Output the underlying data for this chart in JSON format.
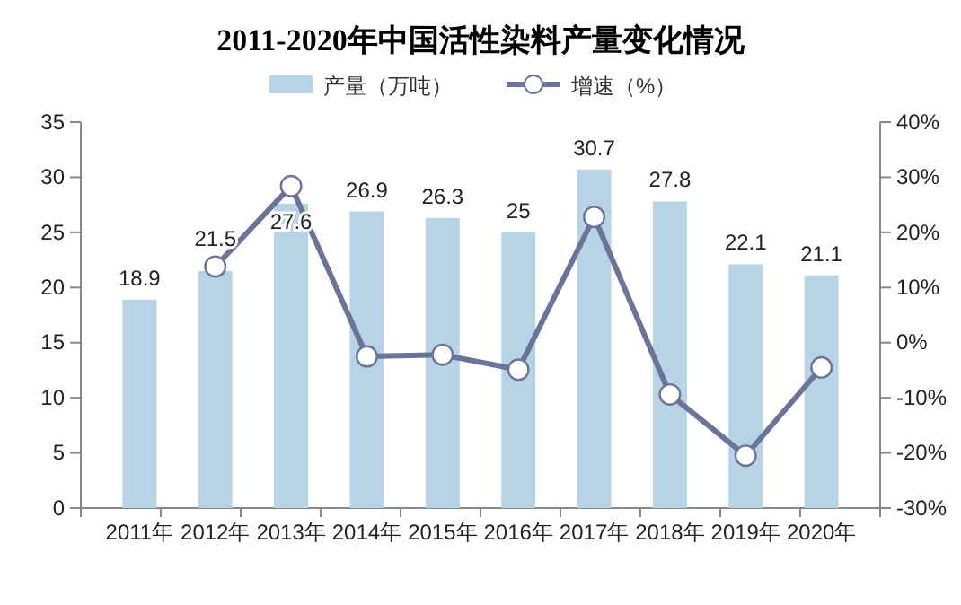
{
  "chart_data": {
    "type": "bar",
    "title": "2011-2020年中国活性染料产量变化情况",
    "categories": [
      "2011年",
      "2012年",
      "2013年",
      "2014年",
      "2015年",
      "2016年",
      "2017年",
      "2018年",
      "2019年",
      "2020年"
    ],
    "series": [
      {
        "name": "产量（万吨）",
        "color": "#b7d3e6",
        "values": [
          18.9,
          21.5,
          27.6,
          26.9,
          26.3,
          25,
          30.7,
          27.8,
          22.1,
          21.1
        ],
        "value_labels": [
          "18.9",
          "21.5",
          "27.6",
          "26.9",
          "26.3",
          "25",
          "30.7",
          "27.8",
          "22.1",
          "21.1"
        ]
      },
      {
        "name": "增速（%）",
        "type": "line",
        "axis": "y2",
        "color": "#6b7399",
        "values": [
          null,
          13.8,
          28.4,
          -2.5,
          -2.2,
          -4.9,
          22.8,
          -9.4,
          -20.5,
          -4.5
        ]
      }
    ],
    "marker": "circle",
    "legend": "top",
    "grid": false,
    "ylim": [
      0,
      35
    ],
    "yticks": [
      0,
      5,
      10,
      15,
      20,
      25,
      30,
      35
    ],
    "y2lim": [
      -30,
      40
    ],
    "y2ticks": [
      {
        "value": -30,
        "label": "-30%"
      },
      {
        "value": -20,
        "label": "-20%"
      },
      {
        "value": -10,
        "label": "-10%"
      },
      {
        "value": 0,
        "label": "0%"
      },
      {
        "value": 10,
        "label": "10%"
      },
      {
        "value": 20,
        "label": "20%"
      },
      {
        "value": 30,
        "label": "30%"
      },
      {
        "value": 40,
        "label": "40%"
      }
    ]
  }
}
